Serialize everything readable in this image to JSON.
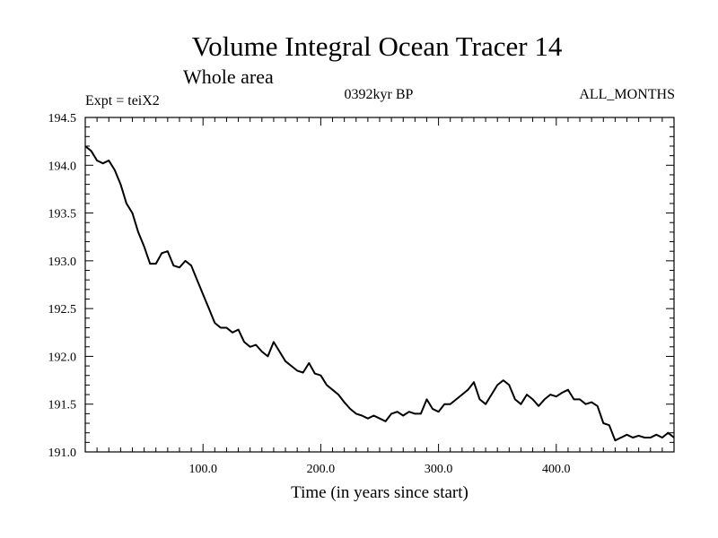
{
  "chart_data": {
    "type": "line",
    "title": "Volume Integral Ocean Tracer 14",
    "subtitle": "Whole area",
    "experiment": "Expt = teiX2",
    "period": "0392kyr BP",
    "months": "ALL_MONTHS",
    "xlabel": "Time (in years since start)",
    "ylabel": "",
    "xlim": [
      0,
      500
    ],
    "ylim": [
      191.0,
      194.5
    ],
    "x_ticks": [
      100,
      200,
      300,
      400
    ],
    "x_tick_labels": [
      "100.0",
      "200.0",
      "300.0",
      "400.0"
    ],
    "y_ticks": [
      191.0,
      191.5,
      192.0,
      192.5,
      193.0,
      193.5,
      194.0,
      194.5
    ],
    "y_tick_labels": [
      "191.0",
      "191.5",
      "192.0",
      "192.5",
      "193.0",
      "193.5",
      "194.0",
      "194.5"
    ],
    "grid": false,
    "series": [
      {
        "color": "#000000",
        "x": [
          0,
          5,
          10,
          15,
          20,
          25,
          30,
          35,
          40,
          45,
          50,
          55,
          60,
          65,
          70,
          75,
          80,
          85,
          90,
          95,
          100,
          105,
          110,
          115,
          120,
          125,
          130,
          135,
          140,
          145,
          150,
          155,
          160,
          165,
          170,
          175,
          180,
          185,
          190,
          195,
          200,
          205,
          210,
          215,
          220,
          225,
          230,
          235,
          240,
          245,
          250,
          255,
          260,
          265,
          270,
          275,
          280,
          285,
          290,
          295,
          300,
          305,
          310,
          315,
          320,
          325,
          330,
          335,
          340,
          345,
          350,
          355,
          360,
          365,
          370,
          375,
          380,
          385,
          390,
          395,
          400,
          405,
          410,
          415,
          420,
          425,
          430,
          435,
          440,
          445,
          450,
          455,
          460,
          465,
          470,
          475,
          480,
          485,
          490,
          495,
          500
        ],
        "y": [
          194.2,
          194.15,
          194.05,
          194.02,
          194.05,
          193.95,
          193.8,
          193.6,
          193.5,
          193.3,
          193.15,
          192.97,
          192.97,
          193.08,
          193.1,
          192.95,
          192.93,
          193.0,
          192.95,
          192.8,
          192.65,
          192.5,
          192.35,
          192.3,
          192.3,
          192.25,
          192.28,
          192.15,
          192.1,
          192.12,
          192.05,
          192.0,
          192.15,
          192.05,
          191.95,
          191.9,
          191.85,
          191.83,
          191.93,
          191.82,
          191.8,
          191.7,
          191.65,
          191.6,
          191.52,
          191.45,
          191.4,
          191.38,
          191.35,
          191.38,
          191.35,
          191.32,
          191.4,
          191.42,
          191.38,
          191.42,
          191.4,
          191.4,
          191.55,
          191.45,
          191.42,
          191.5,
          191.5,
          191.55,
          191.6,
          191.65,
          191.73,
          191.55,
          191.5,
          191.6,
          191.7,
          191.75,
          191.7,
          191.55,
          191.5,
          191.6,
          191.55,
          191.48,
          191.55,
          191.6,
          191.58,
          191.62,
          191.65,
          191.55,
          191.55,
          191.5,
          191.52,
          191.48,
          191.3,
          191.28,
          191.12,
          191.15,
          191.18,
          191.15,
          191.17,
          191.15,
          191.15,
          191.18,
          191.15,
          191.2,
          191.15
        ]
      }
    ]
  }
}
